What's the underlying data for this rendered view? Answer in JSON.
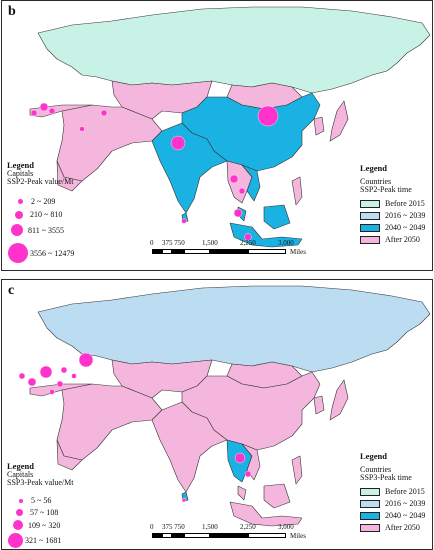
{
  "colors": {
    "before2015": "#c9f2e6",
    "y2016_2039": "#bcdcf2",
    "y2040_2049": "#19b2e3",
    "after2050": "#f5b6de",
    "capital": "#ff33cc",
    "border": "#333333"
  },
  "scale": {
    "ticks": [
      "0",
      "375 750",
      "1,500",
      "2,250",
      "3,000"
    ],
    "unit": "Miles"
  },
  "panel_b": {
    "label": "b",
    "capitals_legend": {
      "title": "Legend",
      "subtitle": "Capitals",
      "field": "SSP2-Peak value/Mt",
      "classes": [
        "2 ~ 209",
        "210 ~ 810",
        "811 ~ 3555",
        "3556 ~ 12479"
      ]
    },
    "countries_legend": {
      "title": "Legend",
      "subtitle": "Countries",
      "field": "SSP2-Peak time",
      "classes": [
        "Before 2015",
        "2016 ~ 2039",
        "2040 ~ 2049",
        "After 2050"
      ]
    }
  },
  "panel_c": {
    "label": "c",
    "capitals_legend": {
      "title": "Legend",
      "subtitle": "Capitals",
      "field": "SSP3-Peak value/Mt",
      "classes": [
        "5 ~ 56",
        "57 ~ 108",
        "109 ~ 320",
        "321 ~ 1681"
      ]
    },
    "countries_legend": {
      "title": "Legend",
      "subtitle": "Countries",
      "field": "SSP3-Peak time",
      "classes": [
        "Before 2015",
        "2016 ~ 2039",
        "2040 ~ 2049",
        "After 2050"
      ]
    }
  }
}
